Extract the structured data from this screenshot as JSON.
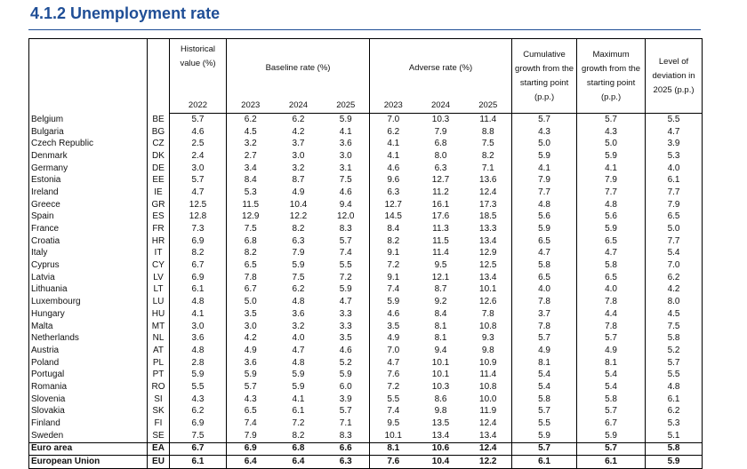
{
  "title": "4.1.2 Unemployment rate",
  "table": {
    "headers": [
      "Historical value (%)",
      "Baseline rate (%)",
      "Adverse rate (%)",
      "Cumulative growth from the starting point (p.p.)",
      "Maximum growth from the starting point (p.p.)",
      "Level of deviation in 2025 (p.p.)"
    ],
    "years": [
      "2022",
      "2023",
      "2024",
      "2025",
      "2023",
      "2024",
      "2025"
    ],
    "rows": [
      [
        "Belgium",
        "BE",
        "5.7",
        "6.2",
        "6.2",
        "5.9",
        "7.0",
        "10.3",
        "11.4",
        "5.7",
        "5.7",
        "5.5"
      ],
      [
        "Bulgaria",
        "BG",
        "4.6",
        "4.5",
        "4.2",
        "4.1",
        "6.2",
        "7.9",
        "8.8",
        "4.3",
        "4.3",
        "4.7"
      ],
      [
        "Czech Republic",
        "CZ",
        "2.5",
        "3.2",
        "3.7",
        "3.6",
        "4.1",
        "6.8",
        "7.5",
        "5.0",
        "5.0",
        "3.9"
      ],
      [
        "Denmark",
        "DK",
        "2.4",
        "2.7",
        "3.0",
        "3.0",
        "4.1",
        "8.0",
        "8.2",
        "5.9",
        "5.9",
        "5.3"
      ],
      [
        "Germany",
        "DE",
        "3.0",
        "3.4",
        "3.2",
        "3.1",
        "4.6",
        "6.3",
        "7.1",
        "4.1",
        "4.1",
        "4.0"
      ],
      [
        "Estonia",
        "EE",
        "5.7",
        "8.4",
        "8.7",
        "7.5",
        "9.6",
        "12.7",
        "13.6",
        "7.9",
        "7.9",
        "6.1"
      ],
      [
        "Ireland",
        "IE",
        "4.7",
        "5.3",
        "4.9",
        "4.6",
        "6.3",
        "11.2",
        "12.4",
        "7.7",
        "7.7",
        "7.7"
      ],
      [
        "Greece",
        "GR",
        "12.5",
        "11.5",
        "10.4",
        "9.4",
        "12.7",
        "16.1",
        "17.3",
        "4.8",
        "4.8",
        "7.9"
      ],
      [
        "Spain",
        "ES",
        "12.8",
        "12.9",
        "12.2",
        "12.0",
        "14.5",
        "17.6",
        "18.5",
        "5.6",
        "5.6",
        "6.5"
      ],
      [
        "France",
        "FR",
        "7.3",
        "7.5",
        "8.2",
        "8.3",
        "8.4",
        "11.3",
        "13.3",
        "5.9",
        "5.9",
        "5.0"
      ],
      [
        "Croatia",
        "HR",
        "6.9",
        "6.8",
        "6.3",
        "5.7",
        "8.2",
        "11.5",
        "13.4",
        "6.5",
        "6.5",
        "7.7"
      ],
      [
        "Italy",
        "IT",
        "8.2",
        "8.2",
        "7.9",
        "7.4",
        "9.1",
        "11.4",
        "12.9",
        "4.7",
        "4.7",
        "5.4"
      ],
      [
        "Cyprus",
        "CY",
        "6.7",
        "6.5",
        "5.9",
        "5.5",
        "7.2",
        "9.5",
        "12.5",
        "5.8",
        "5.8",
        "7.0"
      ],
      [
        "Latvia",
        "LV",
        "6.9",
        "7.8",
        "7.5",
        "7.2",
        "9.1",
        "12.1",
        "13.4",
        "6.5",
        "6.5",
        "6.2"
      ],
      [
        "Lithuania",
        "LT",
        "6.1",
        "6.7",
        "6.2",
        "5.9",
        "7.4",
        "8.7",
        "10.1",
        "4.0",
        "4.0",
        "4.2"
      ],
      [
        "Luxembourg",
        "LU",
        "4.8",
        "5.0",
        "4.8",
        "4.7",
        "5.9",
        "9.2",
        "12.6",
        "7.8",
        "7.8",
        "8.0"
      ],
      [
        "Hungary",
        "HU",
        "4.1",
        "3.5",
        "3.6",
        "3.3",
        "4.6",
        "8.4",
        "7.8",
        "3.7",
        "4.4",
        "4.5"
      ],
      [
        "Malta",
        "MT",
        "3.0",
        "3.0",
        "3.2",
        "3.3",
        "3.5",
        "8.1",
        "10.8",
        "7.8",
        "7.8",
        "7.5"
      ],
      [
        "Netherlands",
        "NL",
        "3.6",
        "4.2",
        "4.0",
        "3.5",
        "4.9",
        "8.1",
        "9.3",
        "5.7",
        "5.7",
        "5.8"
      ],
      [
        "Austria",
        "AT",
        "4.8",
        "4.9",
        "4.7",
        "4.6",
        "7.0",
        "9.4",
        "9.8",
        "4.9",
        "4.9",
        "5.2"
      ],
      [
        "Poland",
        "PL",
        "2.8",
        "3.6",
        "4.8",
        "5.2",
        "4.7",
        "10.1",
        "10.9",
        "8.1",
        "8.1",
        "5.7"
      ],
      [
        "Portugal",
        "PT",
        "5.9",
        "5.9",
        "5.9",
        "5.9",
        "7.6",
        "10.1",
        "11.4",
        "5.4",
        "5.4",
        "5.5"
      ],
      [
        "Romania",
        "RO",
        "5.5",
        "5.7",
        "5.9",
        "6.0",
        "7.2",
        "10.3",
        "10.8",
        "5.4",
        "5.4",
        "4.8"
      ],
      [
        "Slovenia",
        "SI",
        "4.3",
        "4.3",
        "4.1",
        "3.9",
        "5.5",
        "8.6",
        "10.0",
        "5.8",
        "5.8",
        "6.1"
      ],
      [
        "Slovakia",
        "SK",
        "6.2",
        "6.5",
        "6.1",
        "5.7",
        "7.4",
        "9.8",
        "11.9",
        "5.7",
        "5.7",
        "6.2"
      ],
      [
        "Finland",
        "FI",
        "6.9",
        "7.4",
        "7.2",
        "7.1",
        "9.5",
        "13.5",
        "12.4",
        "5.5",
        "6.7",
        "5.3"
      ],
      [
        "Sweden",
        "SE",
        "7.5",
        "7.9",
        "8.2",
        "8.3",
        "10.1",
        "13.4",
        "13.4",
        "5.9",
        "5.9",
        "5.1"
      ],
      [
        "Euro area",
        "EA",
        "6.7",
        "6.9",
        "6.8",
        "6.6",
        "8.1",
        "10.6",
        "12.4",
        "5.7",
        "5.7",
        "5.8"
      ],
      [
        "European Union",
        "EU",
        "6.1",
        "6.4",
        "6.4",
        "6.3",
        "7.6",
        "10.4",
        "12.2",
        "6.1",
        "6.1",
        "5.9"
      ]
    ]
  }
}
